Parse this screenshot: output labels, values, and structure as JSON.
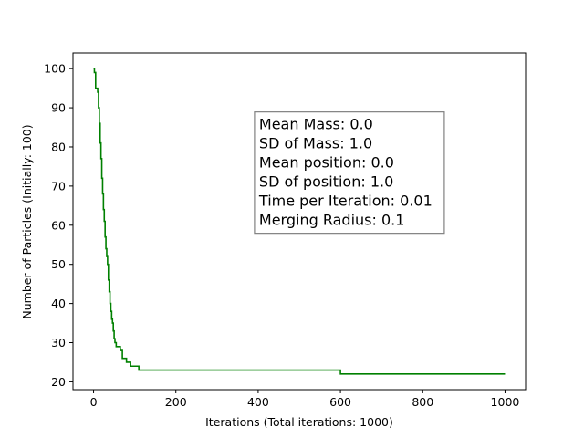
{
  "chart_data": {
    "type": "line",
    "title": "",
    "xlabel": "Iterations (Total iterations: 1000)",
    "ylabel": "Number of Particles (Initially: 100)",
    "xlim": [
      -50,
      1050
    ],
    "ylim": [
      18,
      104
    ],
    "xticks": [
      0,
      200,
      400,
      600,
      800,
      1000
    ],
    "yticks": [
      20,
      30,
      40,
      50,
      60,
      70,
      80,
      90,
      100
    ],
    "grid": false,
    "series": [
      {
        "color": "#008000",
        "points": [
          [
            0,
            100
          ],
          [
            2,
            100
          ],
          [
            2,
            99
          ],
          [
            5,
            99
          ],
          [
            5,
            95
          ],
          [
            10,
            95
          ],
          [
            10,
            94
          ],
          [
            12,
            94
          ],
          [
            12,
            90
          ],
          [
            14,
            90
          ],
          [
            14,
            86
          ],
          [
            16,
            86
          ],
          [
            16,
            81
          ],
          [
            18,
            81
          ],
          [
            18,
            77
          ],
          [
            20,
            77
          ],
          [
            20,
            72
          ],
          [
            22,
            72
          ],
          [
            22,
            68
          ],
          [
            24,
            68
          ],
          [
            24,
            64
          ],
          [
            26,
            64
          ],
          [
            26,
            61
          ],
          [
            28,
            61
          ],
          [
            28,
            57
          ],
          [
            30,
            57
          ],
          [
            30,
            54
          ],
          [
            32,
            54
          ],
          [
            32,
            52
          ],
          [
            34,
            52
          ],
          [
            34,
            50
          ],
          [
            36,
            50
          ],
          [
            36,
            46
          ],
          [
            38,
            46
          ],
          [
            38,
            43
          ],
          [
            40,
            43
          ],
          [
            40,
            40
          ],
          [
            42,
            40
          ],
          [
            42,
            38
          ],
          [
            44,
            38
          ],
          [
            44,
            36
          ],
          [
            46,
            36
          ],
          [
            46,
            35
          ],
          [
            48,
            35
          ],
          [
            48,
            33
          ],
          [
            50,
            33
          ],
          [
            50,
            31
          ],
          [
            52,
            31
          ],
          [
            52,
            30
          ],
          [
            55,
            30
          ],
          [
            55,
            29
          ],
          [
            65,
            29
          ],
          [
            65,
            28
          ],
          [
            70,
            28
          ],
          [
            70,
            26
          ],
          [
            80,
            26
          ],
          [
            80,
            25
          ],
          [
            90,
            25
          ],
          [
            90,
            24
          ],
          [
            100,
            24
          ],
          [
            100,
            24
          ],
          [
            110,
            24
          ],
          [
            110,
            23
          ],
          [
            600,
            23
          ],
          [
            600,
            22
          ],
          [
            1000,
            22
          ]
        ]
      }
    ],
    "annotation": {
      "lines": [
        "Mean Mass: 0.0",
        "SD of Mass: 1.0",
        "Mean position: 0.0",
        "SD of position: 1.0",
        "Time per Iteration: 0.01",
        "Merging Radius: 0.1"
      ],
      "anchor": [
        400,
        88
      ]
    }
  }
}
